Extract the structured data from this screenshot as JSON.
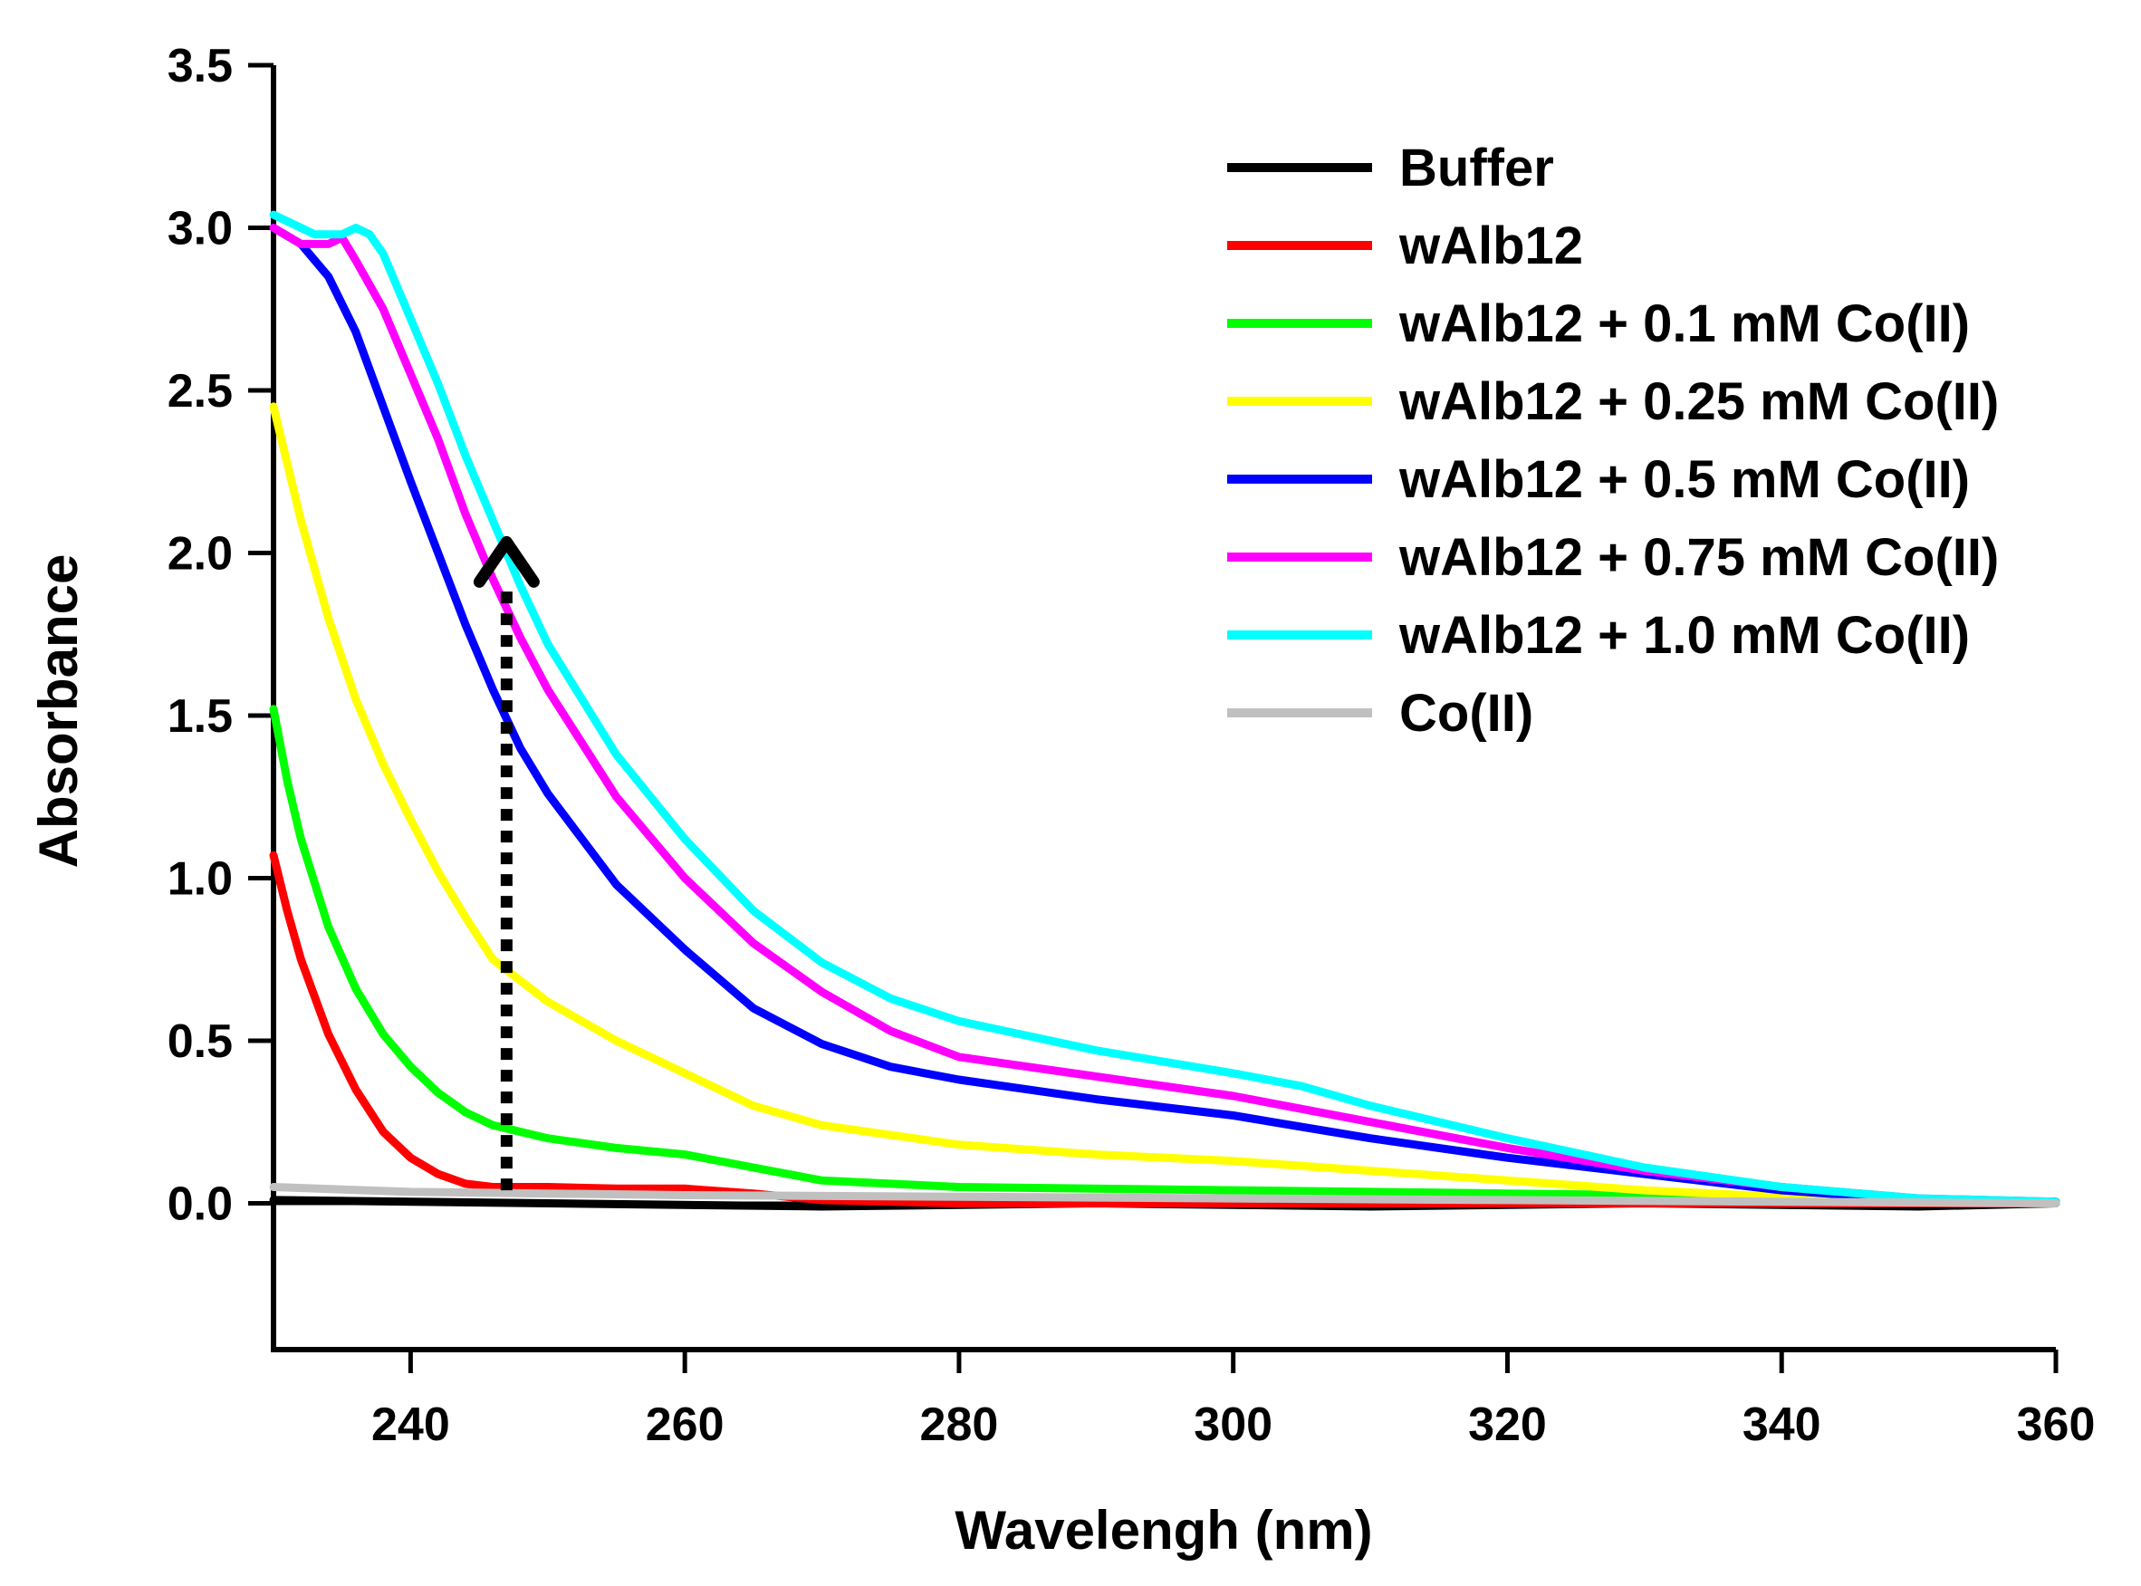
{
  "chart_data": {
    "type": "line",
    "title": "",
    "xlabel": "Wavelengh (nm)",
    "ylabel": "Absorbance",
    "xlim": [
      230,
      360
    ],
    "ylim": [
      -0.45,
      3.5
    ],
    "xticks": [
      240,
      260,
      280,
      300,
      320,
      340,
      360
    ],
    "yticks": [
      0.0,
      0.5,
      1.0,
      1.5,
      2.0,
      2.5,
      3.0,
      3.5
    ],
    "ytick_labels": [
      "0.0",
      "0.5",
      "1.0",
      "1.5",
      "2.0",
      "2.5",
      "3.0",
      "3.5"
    ],
    "grid": false,
    "legend_position": "top-right",
    "series": [
      {
        "name": "Buffer",
        "color": "#000000",
        "x": [
          230,
          250,
          270,
          290,
          310,
          330,
          350,
          360
        ],
        "y": [
          0.01,
          0.0,
          -0.01,
          0.0,
          -0.01,
          0.0,
          -0.01,
          0.0
        ]
      },
      {
        "name": "wAlb12",
        "color": "#ff0000",
        "x": [
          230,
          231,
          232,
          234,
          236,
          238,
          240,
          242,
          244,
          246,
          250,
          255,
          260,
          265,
          270,
          280,
          300,
          320,
          340,
          360
        ],
        "y": [
          1.07,
          0.9,
          0.75,
          0.52,
          0.35,
          0.22,
          0.14,
          0.09,
          0.06,
          0.05,
          0.05,
          0.045,
          0.045,
          0.03,
          0.01,
          0.0,
          0.0,
          0.0,
          0.0,
          0.0
        ]
      },
      {
        "name": "wAlb12 + 0.1 mM Co(II)",
        "color": "#00ff00",
        "x": [
          230,
          231,
          232,
          234,
          236,
          238,
          240,
          242,
          244,
          246,
          248,
          250,
          255,
          260,
          265,
          270,
          280,
          300,
          320,
          340,
          350,
          360
        ],
        "y": [
          1.52,
          1.3,
          1.12,
          0.85,
          0.66,
          0.52,
          0.42,
          0.34,
          0.28,
          0.24,
          0.22,
          0.2,
          0.17,
          0.15,
          0.11,
          0.07,
          0.05,
          0.04,
          0.03,
          0.02,
          0.01,
          0.005
        ]
      },
      {
        "name": "wAlb12 + 0.25 mM Co(II)",
        "color": "#ffff00",
        "x": [
          230,
          232,
          234,
          236,
          238,
          240,
          242,
          244,
          246,
          250,
          255,
          260,
          265,
          270,
          280,
          290,
          300,
          310,
          320,
          330,
          340,
          350,
          360
        ],
        "y": [
          2.45,
          2.1,
          1.8,
          1.55,
          1.35,
          1.18,
          1.02,
          0.88,
          0.75,
          0.62,
          0.5,
          0.4,
          0.3,
          0.24,
          0.18,
          0.15,
          0.13,
          0.1,
          0.07,
          0.04,
          0.02,
          0.01,
          0.005
        ]
      },
      {
        "name": "wAlb12 + 0.5 mM Co(II)",
        "color": "#0000ff",
        "x": [
          230,
          232,
          234,
          236,
          238,
          240,
          242,
          244,
          246,
          248,
          250,
          255,
          260,
          265,
          270,
          275,
          280,
          290,
          300,
          310,
          320,
          330,
          340,
          350,
          360
        ],
        "y": [
          3.0,
          2.95,
          2.85,
          2.68,
          2.45,
          2.22,
          2.0,
          1.78,
          1.58,
          1.4,
          1.26,
          0.98,
          0.78,
          0.6,
          0.49,
          0.42,
          0.38,
          0.32,
          0.27,
          0.2,
          0.14,
          0.09,
          0.04,
          0.01,
          0.005
        ]
      },
      {
        "name": "wAlb12 + 0.75 mM Co(II)",
        "color": "#ff00ff",
        "x": [
          230,
          232,
          234,
          235,
          236,
          238,
          240,
          242,
          244,
          246,
          248,
          250,
          255,
          260,
          265,
          270,
          275,
          280,
          290,
          300,
          305,
          310,
          320,
          330,
          340,
          350,
          360
        ],
        "y": [
          3.0,
          2.95,
          2.95,
          2.97,
          2.9,
          2.75,
          2.55,
          2.35,
          2.12,
          1.92,
          1.74,
          1.58,
          1.25,
          1.0,
          0.8,
          0.65,
          0.53,
          0.45,
          0.39,
          0.33,
          0.29,
          0.25,
          0.17,
          0.1,
          0.05,
          0.015,
          0.005
        ]
      },
      {
        "name": "wAlb12 + 1.0 mM Co(II)",
        "color": "#00ffff",
        "x": [
          230,
          232,
          233,
          235,
          236,
          237,
          238,
          240,
          242,
          244,
          246,
          248,
          250,
          255,
          260,
          265,
          270,
          275,
          280,
          290,
          300,
          305,
          310,
          320,
          330,
          340,
          350,
          360
        ],
        "y": [
          3.04,
          3.0,
          2.98,
          2.98,
          3.0,
          2.98,
          2.92,
          2.72,
          2.52,
          2.3,
          2.1,
          1.9,
          1.72,
          1.38,
          1.12,
          0.9,
          0.74,
          0.63,
          0.56,
          0.47,
          0.4,
          0.36,
          0.3,
          0.2,
          0.11,
          0.05,
          0.015,
          0.005
        ]
      },
      {
        "name": "Co(II)",
        "color": "#c0c0c0",
        "x": [
          230,
          240,
          250,
          260,
          280,
          300,
          320,
          340,
          360
        ],
        "y": [
          0.05,
          0.035,
          0.03,
          0.025,
          0.02,
          0.015,
          0.01,
          0.005,
          0.0
        ]
      }
    ],
    "annotations": [
      {
        "type": "arrow",
        "style": "dotted",
        "x": 247,
        "y_start": 0.04,
        "y_end": 1.9,
        "color": "#000000"
      }
    ]
  }
}
